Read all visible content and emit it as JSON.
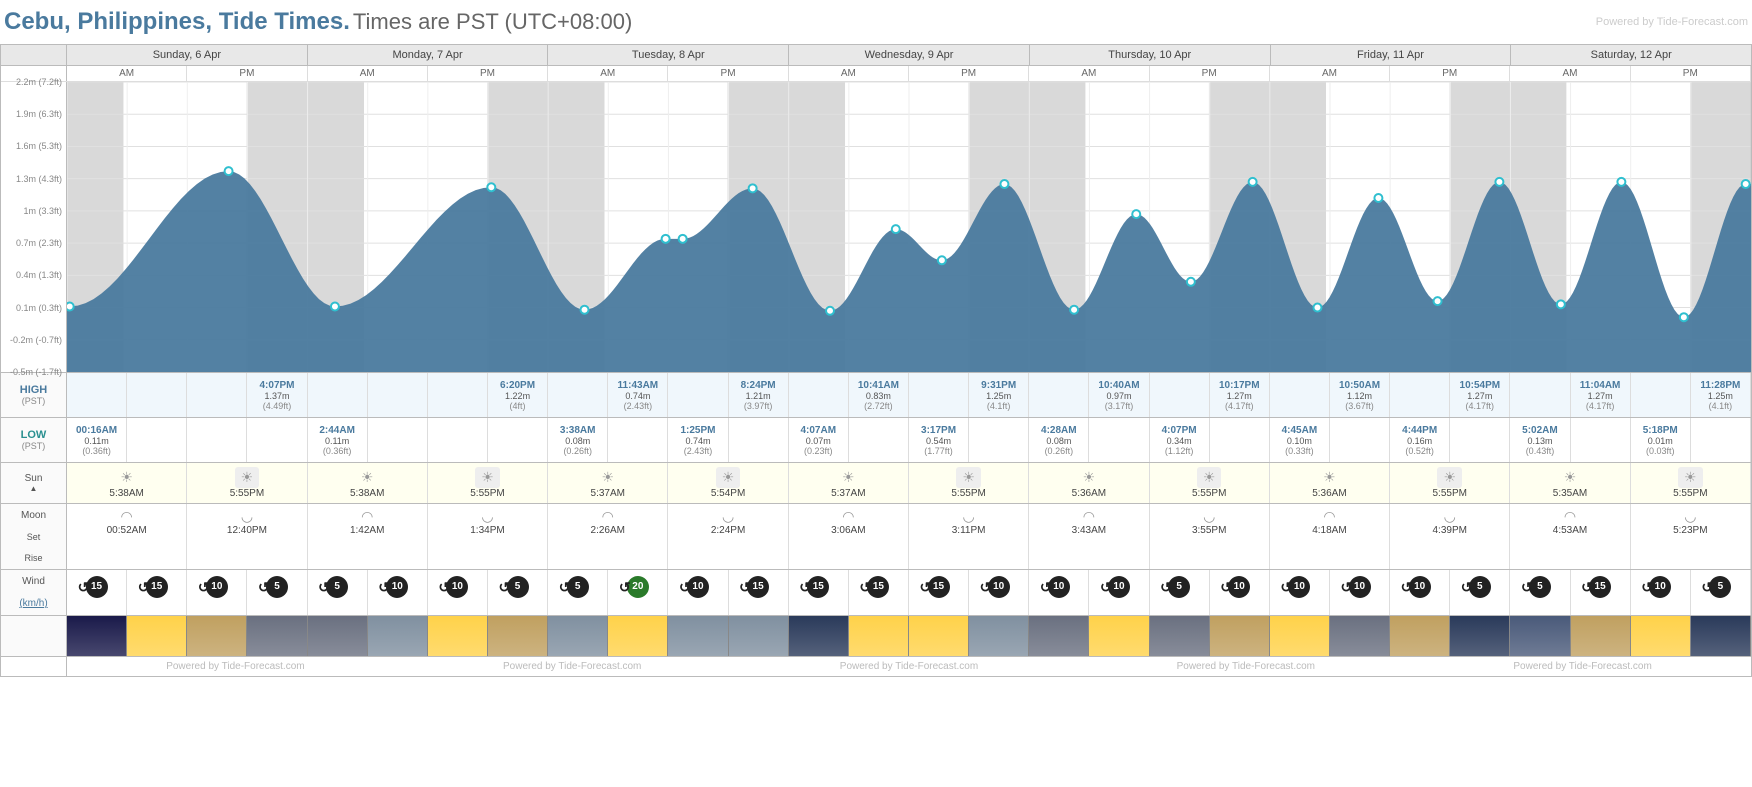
{
  "title_location": "Cebu, Philippines, Tide Times.",
  "title_tz": "Times are PST (UTC+08:00)",
  "watermark": "Powered by Tide-Forecast.com",
  "days": [
    {
      "label": "Sunday, 6 Apr"
    },
    {
      "label": "Monday, 7 Apr"
    },
    {
      "label": "Tuesday, 8 Apr"
    },
    {
      "label": "Wednesday, 9 Apr"
    },
    {
      "label": "Thursday, 10 Apr"
    },
    {
      "label": "Friday, 11 Apr"
    },
    {
      "label": "Saturday, 12 Apr"
    }
  ],
  "ampm": [
    "AM",
    "PM"
  ],
  "chart": {
    "type": "area",
    "ylim": [
      -0.5,
      2.2
    ],
    "yticks": [
      {
        "v": 2.2,
        "label": "2.2m (7.2ft)"
      },
      {
        "v": 1.9,
        "label": "1.9m (6.3ft)"
      },
      {
        "v": 1.6,
        "label": "1.6m (5.3ft)"
      },
      {
        "v": 1.3,
        "label": "1.3m (4.3ft)"
      },
      {
        "v": 1.0,
        "label": "1m (3.3ft)"
      },
      {
        "v": 0.7,
        "label": "0.7m (2.3ft)"
      },
      {
        "v": 0.4,
        "label": "0.4m (1.3ft)"
      },
      {
        "v": 0.1,
        "label": "0.1m (0.3ft)"
      },
      {
        "v": -0.2,
        "label": "-0.2m (-0.7ft)"
      },
      {
        "v": -0.5,
        "label": "-0.5m (-1.7ft)"
      }
    ],
    "area_color": "#4a7a9e",
    "grid_color": "#e0e0e0",
    "night_band_color": "#d9d9d9",
    "background_color": "#ffffff",
    "marker_color": "#2fbfcf",
    "points": [
      {
        "hr": 0.27,
        "m": 0.11,
        "type": "low"
      },
      {
        "hr": 16.12,
        "m": 1.37,
        "type": "high"
      },
      {
        "hr": 26.73,
        "m": 0.11,
        "type": "low"
      },
      {
        "hr": 42.33,
        "m": 1.22,
        "type": "high"
      },
      {
        "hr": 51.63,
        "m": 0.08,
        "type": "low"
      },
      {
        "hr": 59.72,
        "m": 0.74,
        "type": "high"
      },
      {
        "hr": 61.42,
        "m": 0.74,
        "type": "low"
      },
      {
        "hr": 68.4,
        "m": 1.21,
        "type": "high"
      },
      {
        "hr": 76.12,
        "m": 0.07,
        "type": "low"
      },
      {
        "hr": 82.68,
        "m": 0.83,
        "type": "high"
      },
      {
        "hr": 87.28,
        "m": 0.54,
        "type": "low"
      },
      {
        "hr": 93.52,
        "m": 1.25,
        "type": "high"
      },
      {
        "hr": 100.47,
        "m": 0.08,
        "type": "low"
      },
      {
        "hr": 106.67,
        "m": 0.97,
        "type": "high"
      },
      {
        "hr": 112.12,
        "m": 0.34,
        "type": "low"
      },
      {
        "hr": 118.28,
        "m": 1.27,
        "type": "high"
      },
      {
        "hr": 124.75,
        "m": 0.1,
        "type": "low"
      },
      {
        "hr": 130.83,
        "m": 1.12,
        "type": "high"
      },
      {
        "hr": 136.73,
        "m": 0.16,
        "type": "low"
      },
      {
        "hr": 142.9,
        "m": 1.27,
        "type": "high"
      },
      {
        "hr": 149.03,
        "m": 0.13,
        "type": "low"
      },
      {
        "hr": 155.07,
        "m": 1.27,
        "type": "high"
      },
      {
        "hr": 161.3,
        "m": 0.01,
        "type": "low"
      },
      {
        "hr": 167.47,
        "m": 1.25,
        "type": "high"
      }
    ],
    "total_hours": 168,
    "night_bands": [
      {
        "start": 0,
        "end": 5.63
      },
      {
        "start": 17.92,
        "end": 29.63
      },
      {
        "start": 41.92,
        "end": 53.62
      },
      {
        "start": 65.9,
        "end": 77.62
      },
      {
        "start": 89.92,
        "end": 101.6
      },
      {
        "start": 113.92,
        "end": 125.6
      },
      {
        "start": 137.92,
        "end": 149.58
      },
      {
        "start": 161.92,
        "end": 168
      }
    ]
  },
  "high": {
    "label": "HIGH",
    "tz": "(PST)",
    "cells": [
      "",
      "",
      "",
      {
        "time": "4:07PM",
        "m": "1.37m",
        "ft": "(4.49ft)"
      },
      "",
      "",
      "",
      {
        "time": "6:20PM",
        "m": "1.22m",
        "ft": "(4ft)"
      },
      "",
      {
        "time": "11:43AM",
        "m": "0.74m",
        "ft": "(2.43ft)"
      },
      "",
      {
        "time": "8:24PM",
        "m": "1.21m",
        "ft": "(3.97ft)"
      },
      "",
      {
        "time": "10:41AM",
        "m": "0.83m",
        "ft": "(2.72ft)"
      },
      "",
      {
        "time": "9:31PM",
        "m": "1.25m",
        "ft": "(4.1ft)"
      },
      "",
      {
        "time": "10:40AM",
        "m": "0.97m",
        "ft": "(3.17ft)"
      },
      "",
      {
        "time": "10:17PM",
        "m": "1.27m",
        "ft": "(4.17ft)"
      },
      "",
      {
        "time": "10:50AM",
        "m": "1.12m",
        "ft": "(3.67ft)"
      },
      "",
      {
        "time": "10:54PM",
        "m": "1.27m",
        "ft": "(4.17ft)"
      },
      "",
      {
        "time": "11:04AM",
        "m": "1.27m",
        "ft": "(4.17ft)"
      },
      "",
      {
        "time": "11:28PM",
        "m": "1.25m",
        "ft": "(4.1ft)"
      }
    ]
  },
  "low": {
    "label": "LOW",
    "tz": "(PST)",
    "cells": [
      {
        "time": "00:16AM",
        "m": "0.11m",
        "ft": "(0.36ft)"
      },
      "",
      "",
      "",
      {
        "time": "2:44AM",
        "m": "0.11m",
        "ft": "(0.36ft)"
      },
      "",
      "",
      "",
      {
        "time": "3:38AM",
        "m": "0.08m",
        "ft": "(0.26ft)"
      },
      "",
      {
        "time": "1:25PM",
        "m": "0.74m",
        "ft": "(2.43ft)"
      },
      "",
      {
        "time": "4:07AM",
        "m": "0.07m",
        "ft": "(0.23ft)"
      },
      "",
      {
        "time": "3:17PM",
        "m": "0.54m",
        "ft": "(1.77ft)"
      },
      "",
      {
        "time": "4:28AM",
        "m": "0.08m",
        "ft": "(0.26ft)"
      },
      "",
      {
        "time": "4:07PM",
        "m": "0.34m",
        "ft": "(1.12ft)"
      },
      "",
      {
        "time": "4:45AM",
        "m": "0.10m",
        "ft": "(0.33ft)"
      },
      "",
      {
        "time": "4:44PM",
        "m": "0.16m",
        "ft": "(0.52ft)"
      },
      "",
      {
        "time": "5:02AM",
        "m": "0.13m",
        "ft": "(0.43ft)"
      },
      "",
      {
        "time": "5:18PM",
        "m": "0.01m",
        "ft": "(0.03ft)"
      },
      ""
    ]
  },
  "sun": {
    "label": "Sun",
    "cells": [
      {
        "icon": "rise",
        "t": "5:38AM"
      },
      {
        "icon": "set",
        "t": "5:55PM"
      },
      {
        "icon": "rise",
        "t": "5:38AM"
      },
      {
        "icon": "set",
        "t": "5:55PM"
      },
      {
        "icon": "rise",
        "t": "5:37AM"
      },
      {
        "icon": "set",
        "t": "5:54PM"
      },
      {
        "icon": "rise",
        "t": "5:37AM"
      },
      {
        "icon": "set",
        "t": "5:55PM"
      },
      {
        "icon": "rise",
        "t": "5:36AM"
      },
      {
        "icon": "set",
        "t": "5:55PM"
      },
      {
        "icon": "rise",
        "t": "5:36AM"
      },
      {
        "icon": "set",
        "t": "5:55PM"
      },
      {
        "icon": "rise",
        "t": "5:35AM"
      },
      {
        "icon": "set",
        "t": "5:55PM"
      }
    ]
  },
  "moon": {
    "label": "Moon",
    "sub1": "Set",
    "sub2": "Rise",
    "cells": [
      {
        "icon": "set",
        "t": "00:52AM"
      },
      {
        "icon": "rise",
        "t": "12:40PM"
      },
      {
        "icon": "set",
        "t": "1:42AM"
      },
      {
        "icon": "rise",
        "t": "1:34PM"
      },
      {
        "icon": "set",
        "t": "2:26AM"
      },
      {
        "icon": "rise",
        "t": "2:24PM"
      },
      {
        "icon": "set",
        "t": "3:06AM"
      },
      {
        "icon": "rise",
        "t": "3:11PM"
      },
      {
        "icon": "set",
        "t": "3:43AM"
      },
      {
        "icon": "rise",
        "t": "3:55PM"
      },
      {
        "icon": "set",
        "t": "4:18AM"
      },
      {
        "icon": "rise",
        "t": "4:39PM"
      },
      {
        "icon": "set",
        "t": "4:53AM"
      },
      {
        "icon": "rise",
        "t": "5:23PM"
      }
    ]
  },
  "wind": {
    "label": "Wind",
    "unit": "(km/h)",
    "cells": [
      {
        "s": 15
      },
      {
        "s": 15
      },
      {
        "s": 10
      },
      {
        "s": 5
      },
      {
        "s": 5
      },
      {
        "s": 10
      },
      {
        "s": 10
      },
      {
        "s": 5
      },
      {
        "s": 5
      },
      {
        "s": 20,
        "g": true
      },
      {
        "s": 10
      },
      {
        "s": 15
      },
      {
        "s": 15
      },
      {
        "s": 15
      },
      {
        "s": 15
      },
      {
        "s": 10
      },
      {
        "s": 10
      },
      {
        "s": 10
      },
      {
        "s": 5
      },
      {
        "s": 10
      },
      {
        "s": 10
      },
      {
        "s": 10
      },
      {
        "s": 10
      },
      {
        "s": 5
      },
      {
        "s": 5
      },
      {
        "s": 15
      },
      {
        "s": 10
      },
      {
        "s": 5
      }
    ]
  },
  "weather": {
    "cells": [
      "#1a1a4a",
      "#ffd24a",
      "#c0a060",
      "#6a7080",
      "#6a7080",
      "#8090a0",
      "#ffd24a",
      "#c0a060",
      "#8090a0",
      "#ffd24a",
      "#8090a0",
      "#8090a0",
      "#2a3a5a",
      "#ffd24a",
      "#ffd24a",
      "#8090a0",
      "#6a7080",
      "#ffd24a",
      "#6a7080",
      "#c0a060",
      "#ffd24a",
      "#6a7080",
      "#c0a060",
      "#2a3a5a",
      "#4a5a7a",
      "#c0a060",
      "#ffd24a",
      "#2a3a5a"
    ]
  },
  "footer_text": "Powered by Tide-Forecast.com"
}
